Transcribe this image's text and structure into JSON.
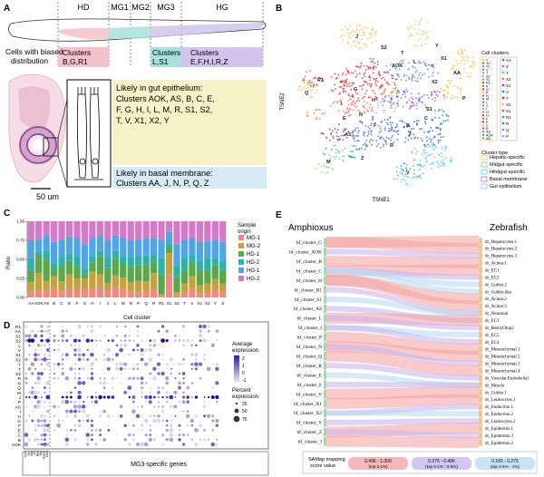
{
  "panels": {
    "a": {
      "letter": "A",
      "regions": [
        "HD",
        "MG1",
        "MG2",
        "MG3",
        "HG"
      ],
      "biased_caption": [
        "Cells with biased",
        "distribution"
      ],
      "cluster_boxes": [
        {
          "lines": [
            "Clusters",
            "B,G,R1"
          ],
          "color": "#f4c2c8"
        },
        {
          "lines": [
            "Clusters",
            "L,S1"
          ],
          "color": "#a8e0dc"
        },
        {
          "lines": [
            "Clusters",
            "E,F,H,I,R,Z"
          ],
          "color": "#d2c4ec"
        }
      ],
      "gut_epithelium_lines": [
        "Likely in gut epithelium:",
        "Clusters AOK, AS, B, C, E,",
        "F, G, H, I, L, M, R, S1, S2,",
        "T, V, X1, X2, Y"
      ],
      "basal_membrane_lines": [
        "Likely in basal membrane:",
        "Clusters AA, J, N, P, Q, Z"
      ],
      "scale_bar": "50 um"
    },
    "b": {
      "letter": "B",
      "xlabel": "TSNE1",
      "ylabel": "TSNE2",
      "legend_title": "Cell clusters",
      "legend_col1": [
        "Y",
        "X2",
        "X1",
        "V",
        "T",
        "S2",
        "S1",
        "R1",
        "R",
        "Q",
        "P",
        "N",
        "M",
        "L",
        "J",
        "I",
        "H",
        "G",
        "F",
        "E",
        "C",
        "B",
        "AS",
        "AOK",
        "AA"
      ],
      "legend_col2": [
        "AA",
        "Z",
        "Y",
        "X2",
        "X1",
        "V",
        "T",
        "S2",
        "S1",
        "R1",
        "R",
        "Q",
        "P"
      ],
      "type_title": "Cluster type",
      "types": [
        {
          "name": "Hepatic-specific",
          "color": "#f2c94c"
        },
        {
          "name": "Midgut-specific",
          "color": "#6fcf97"
        },
        {
          "name": "Hindgut-specific",
          "color": "#56ccf2"
        },
        {
          "name": "Basal membrane",
          "color": "#bb6bd9"
        },
        {
          "name": "Gut epithelium",
          "color": "#9ab4e8"
        }
      ],
      "map_labels": [
        "J",
        "AA",
        "P",
        "R1",
        "Q",
        "Y",
        "X1",
        "X2",
        "T",
        "S2",
        "AOK",
        "L",
        "S1",
        "N",
        "C",
        "B",
        "AS",
        "H",
        "E",
        "G",
        "I",
        "F",
        "R",
        "Z",
        "M",
        "V"
      ]
    },
    "c": {
      "letter": "C",
      "xlabel": "Cell cluster",
      "ylabel": "Ratio",
      "legend_title": "Sample origin"
    },
    "d": {
      "letter": "D",
      "row_labels": [
        "R1",
        "AA",
        "S1",
        "S2",
        "L",
        "V",
        "X1",
        "X2",
        "Y",
        "T",
        "S2",
        "R",
        "N",
        "Q",
        "M",
        "J",
        "P",
        "AS",
        "I",
        "H",
        "G",
        "F",
        "E",
        "C",
        "B",
        "AOK"
      ],
      "left_col_labels": [
        "Liver",
        "Gut",
        "Mid",
        "Ch",
        "Bas",
        "Epi",
        "Hepat",
        "Hind"
      ],
      "avg_title": [
        "Average",
        "expression"
      ],
      "pct_title": [
        "Percent",
        "expression"
      ],
      "footer": "MG3-specific genes"
    },
    "e": {
      "letter": "E",
      "left_title": "Amphioxus",
      "right_title": "Zebrafish",
      "left_labels": [
        "bf_cluster_G",
        "bf_cluster_AOK",
        "bf_cluster_B",
        "bf_cluster_C",
        "bf_cluster_H",
        "bf_cluster_R1",
        "bf_cluster_S1",
        "bf_cluster_AS",
        "bf_cluster_L",
        "bf_cluster_I",
        "bf_cluster_P",
        "bf_cluster_N",
        "bf_cluster_Q",
        "bf_cluster_R",
        "bf_cluster_E",
        "bf_cluster_F",
        "bf_cluster_V",
        "bf_cluster_X1",
        "bf_cluster_X2",
        "bf_cluster_Y",
        "bf_cluster_Z",
        "bf_cluster_J"
      ],
      "right_labels": [
        "dr_Hepatocytes.1",
        "dr_Hepatocytes.2",
        "dr_Hepatocytes.3",
        "dr_Acinar.1",
        "dr_EC1",
        "dr_EC2",
        "dr_Goblet.2",
        "dr_Goblet.like",
        "dr_Acinar.2",
        "dr_Acinar.3",
        "dr_Neuronal",
        "dr_EC3",
        "dr_Best4.Otop2",
        "dr_EC5",
        "dr_EC4",
        "dr_Mesenchymal.1",
        "dr_Mesenchymal.2",
        "dr_Mesenchymal.3",
        "dr_Mesenchymal.4",
        "dr_Vascular.Endothelial",
        "dr_Muscle",
        "dr_Goblet.1",
        "dr_Leukocytes.1",
        "dr_Endocrine.1",
        "dr_Endocrine.2",
        "dr_Leukocytes.2",
        "dr_Epidermis.1",
        "dr_Epidermis.3",
        "dr_Epidermis.2"
      ],
      "legend_title": [
        "SAMap mapping",
        "score value"
      ],
      "legend_items": [
        {
          "range": "0.496 - 1.000",
          "rank": "(top 0.1%)",
          "color": "#f4a6a6"
        },
        {
          "range": "0.275 - 0.496",
          "rank": "(top 0.1% - 0.5%)",
          "color": "#c9b8ef"
        },
        {
          "range": "0.165 - 0.275",
          "rank": "(top 0.5% - 1%)",
          "color": "#b9dcf3"
        }
      ]
    }
  },
  "chart_data": {
    "type": "bar",
    "stacked": true,
    "title": "",
    "xlabel": "Cell cluster",
    "ylabel": "Ratio",
    "ylim": [
      0,
      1
    ],
    "yticks": [
      "0.00",
      "0.25",
      "0.50",
      "0.75",
      "1.00"
    ],
    "categories": [
      "AA",
      "AOK",
      "AS",
      "B",
      "C",
      "E",
      "F",
      "G",
      "H",
      "I",
      "J",
      "L",
      "M",
      "N",
      "P",
      "Q",
      "R",
      "R1",
      "S1",
      "S2",
      "T",
      "V",
      "X1",
      "X2",
      "Y",
      "Z"
    ],
    "series": [
      {
        "name": "MG-1",
        "color": "#f08a80",
        "values": [
          0.08,
          0.1,
          0.08,
          0.12,
          0.08,
          0.12,
          0.09,
          0.1,
          0.12,
          0.13,
          0.09,
          0.13,
          0.11,
          0.08,
          0.07,
          0.09,
          0.12,
          0.02,
          0.3,
          0.03,
          0.06,
          0.12,
          0.05,
          0.06,
          0.1,
          0.08
        ]
      },
      {
        "name": "MG-2",
        "color": "#c5a23c",
        "values": [
          0.12,
          0.22,
          0.14,
          0.16,
          0.13,
          0.18,
          0.16,
          0.15,
          0.22,
          0.17,
          0.1,
          0.16,
          0.15,
          0.12,
          0.15,
          0.12,
          0.2,
          0.02,
          0.28,
          0.04,
          0.12,
          0.16,
          0.11,
          0.12,
          0.14,
          0.1
        ]
      },
      {
        "name": "HD-1",
        "color": "#5ba84a",
        "values": [
          0.16,
          0.24,
          0.27,
          0.1,
          0.2,
          0.18,
          0.16,
          0.05,
          0.12,
          0.24,
          0.2,
          0.22,
          0.18,
          0.2,
          0.2,
          0.22,
          0.14,
          0.26,
          0.08,
          0.2,
          0.18,
          0.18,
          0.2,
          0.18,
          0.18,
          0.18
        ]
      },
      {
        "name": "HD-2",
        "color": "#2bb3a6",
        "values": [
          0.14,
          0.04,
          0.13,
          0.07,
          0.12,
          0.1,
          0.12,
          0.08,
          0.08,
          0.07,
          0.14,
          0.1,
          0.1,
          0.13,
          0.12,
          0.12,
          0.1,
          0.22,
          0.05,
          0.14,
          0.16,
          0.1,
          0.12,
          0.16,
          0.09,
          0.12
        ]
      },
      {
        "name": "HG-1",
        "color": "#4fa6e6",
        "values": [
          0.25,
          0.16,
          0.2,
          0.28,
          0.23,
          0.22,
          0.25,
          0.32,
          0.24,
          0.2,
          0.22,
          0.2,
          0.24,
          0.22,
          0.22,
          0.23,
          0.22,
          0.24,
          0.15,
          0.29,
          0.24,
          0.22,
          0.25,
          0.22,
          0.25,
          0.25
        ]
      },
      {
        "name": "HG-2",
        "color": "#d779c9",
        "values": [
          0.25,
          0.24,
          0.18,
          0.27,
          0.24,
          0.2,
          0.22,
          0.3,
          0.22,
          0.19,
          0.25,
          0.19,
          0.22,
          0.25,
          0.24,
          0.22,
          0.22,
          0.24,
          0.14,
          0.3,
          0.24,
          0.22,
          0.27,
          0.26,
          0.24,
          0.27
        ]
      }
    ],
    "legend_position": "right"
  },
  "dotplot_legend": {
    "avg_ticks": [
      "2",
      "1",
      "0",
      "-1"
    ],
    "pct_ticks": [
      "25",
      "50",
      "75"
    ]
  }
}
